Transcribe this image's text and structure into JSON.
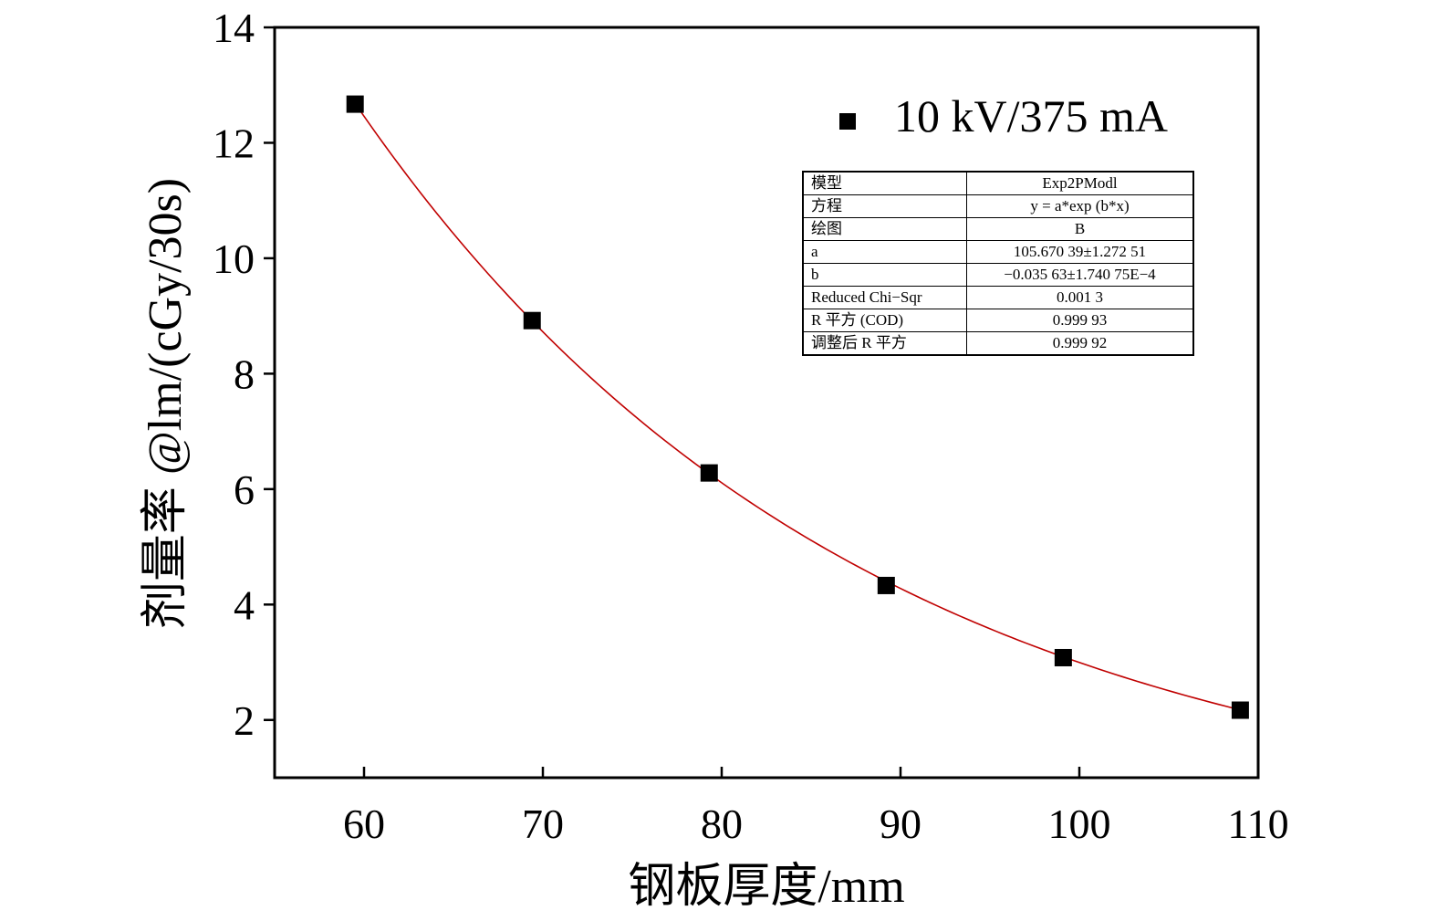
{
  "chart_data": {
    "type": "scatter",
    "xlabel": "钢板厚度/mm",
    "ylabel": "剂量率 @lm/(cGy/30s)",
    "xlim": [
      55,
      110
    ],
    "ylim": [
      1,
      14
    ],
    "x_ticks": [
      60,
      70,
      80,
      90,
      100,
      110
    ],
    "y_ticks": [
      2,
      4,
      6,
      8,
      10,
      12,
      14
    ],
    "grid": false,
    "legend_position": "top-right",
    "series": [
      {
        "name": "10 kV/375 mA",
        "marker": "square",
        "color": "#000000",
        "x": [
          59.5,
          69.4,
          79.3,
          89.2,
          99.1,
          109.0
        ],
        "y": [
          12.67,
          8.92,
          6.28,
          4.33,
          3.08,
          2.17
        ]
      }
    ],
    "fit": {
      "color": "#c00000",
      "model": "exponential",
      "a": 105.67039,
      "b": -0.03563
    },
    "fit_table": [
      {
        "key": "模型",
        "value": "Exp2PModl"
      },
      {
        "key": "方程",
        "value": "y = a*exp (b*x)"
      },
      {
        "key": "绘图",
        "value": "B"
      },
      {
        "key": "a",
        "value": "105.670 39±1.272 51"
      },
      {
        "key": "b",
        "value": "−0.035 63±1.740 75E−4"
      },
      {
        "key": "Reduced Chi−Sqr",
        "value": "0.001 3"
      },
      {
        "key": "R 平方 (COD)",
        "value": "0.999 93"
      },
      {
        "key": "调整后 R 平方",
        "value": "0.999 92"
      }
    ]
  }
}
